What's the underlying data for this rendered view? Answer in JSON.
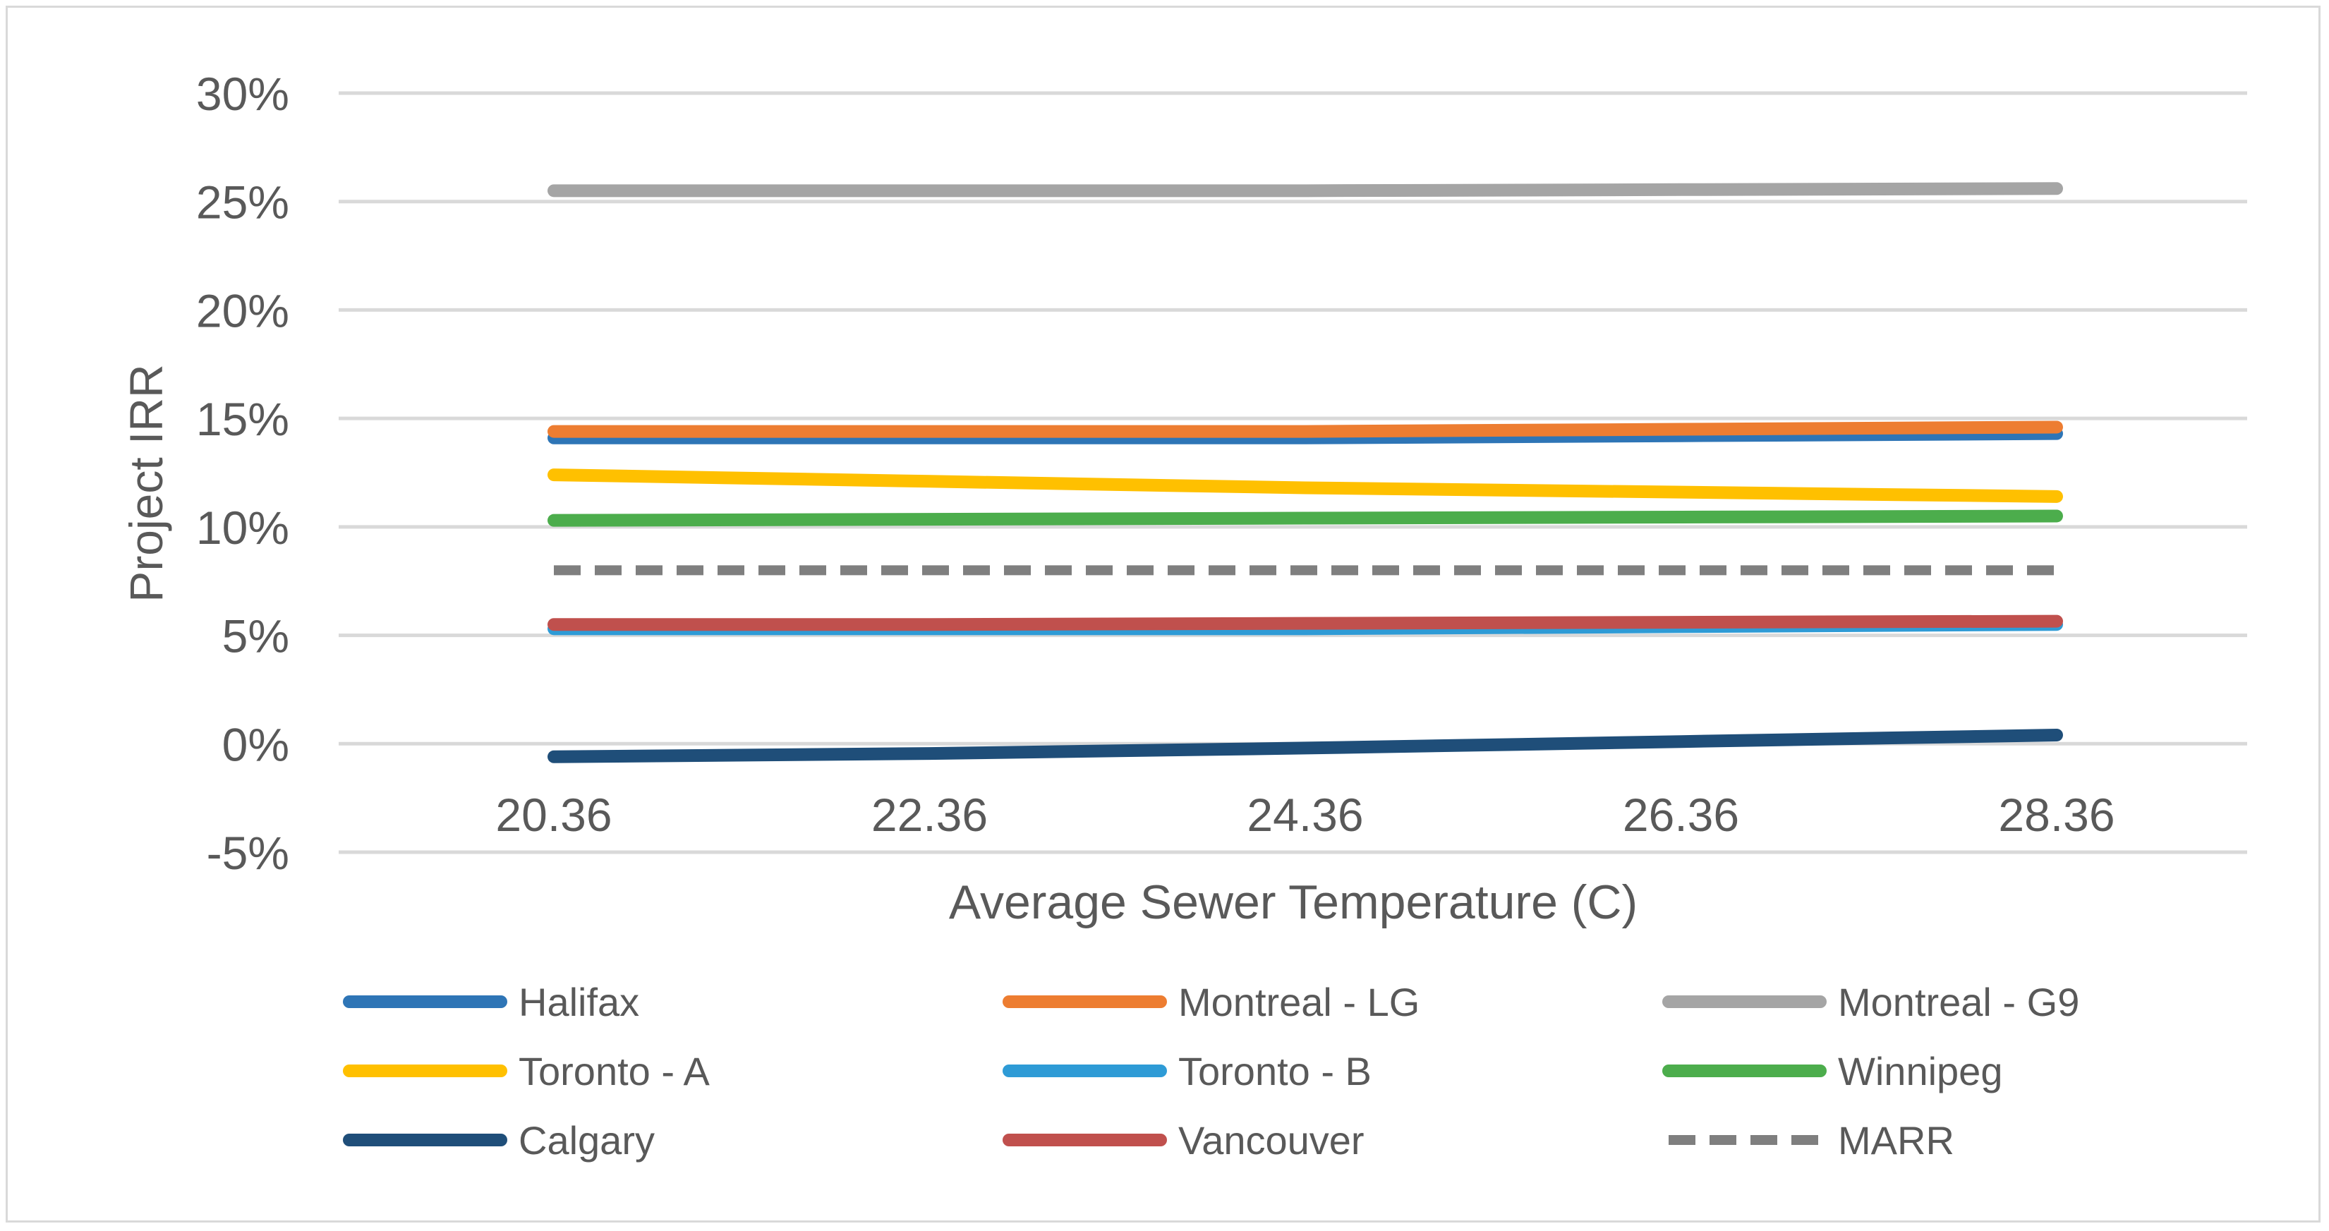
{
  "chart_data": {
    "type": "line",
    "title": "",
    "xlabel": "Average Sewer Temperature (C)",
    "ylabel": "Project IRR",
    "categories": [
      "20.36",
      "22.36",
      "24.36",
      "26.36",
      "28.36"
    ],
    "ylim": [
      -5,
      30
    ],
    "yticks": [
      -5,
      0,
      5,
      10,
      15,
      20,
      25,
      30
    ],
    "ytick_labels": [
      "-5%",
      "0%",
      "5%",
      "10%",
      "15%",
      "20%",
      "25%",
      "30%"
    ],
    "grid": true,
    "legend": "bottom",
    "series": [
      {
        "name": "Halifax",
        "color": "#2e75b6",
        "dash": false,
        "values": [
          14.1,
          14.1,
          14.1,
          14.2,
          14.3
        ]
      },
      {
        "name": "Montreal - LG",
        "color": "#ed7d31",
        "dash": false,
        "values": [
          14.4,
          14.4,
          14.4,
          14.5,
          14.6
        ]
      },
      {
        "name": "Montreal - G9",
        "color": "#a5a5a5",
        "dash": false,
        "values": [
          25.5,
          25.5,
          25.5,
          25.55,
          25.6
        ]
      },
      {
        "name": "Toronto - A",
        "color": "#ffc000",
        "dash": false,
        "values": [
          12.4,
          12.1,
          11.8,
          11.6,
          11.4
        ]
      },
      {
        "name": "Toronto - B",
        "color": "#2e9bd6",
        "dash": false,
        "values": [
          5.3,
          5.3,
          5.3,
          5.4,
          5.5
        ]
      },
      {
        "name": "Winnipeg",
        "color": "#4cad4c",
        "dash": false,
        "values": [
          10.3,
          10.35,
          10.4,
          10.45,
          10.5
        ]
      },
      {
        "name": "Calgary",
        "color": "#1f4e79",
        "dash": false,
        "values": [
          -0.6,
          -0.45,
          -0.2,
          0.1,
          0.4
        ]
      },
      {
        "name": "Vancouver",
        "color": "#c0504d",
        "dash": false,
        "values": [
          5.5,
          5.5,
          5.55,
          5.6,
          5.65
        ]
      },
      {
        "name": "MARR",
        "color": "#7f7f7f",
        "dash": true,
        "values": [
          8,
          8,
          8,
          8,
          8
        ]
      }
    ]
  }
}
